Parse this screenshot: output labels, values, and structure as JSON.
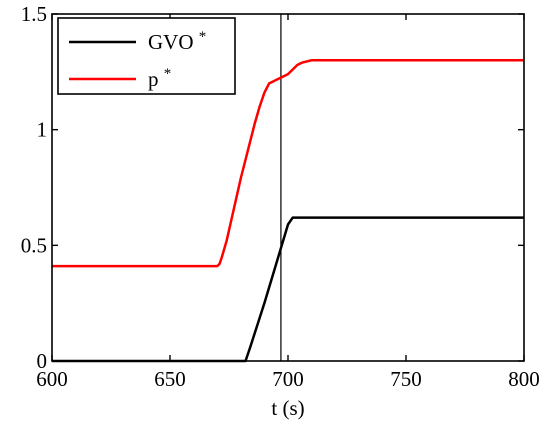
{
  "chart_data": {
    "type": "line",
    "xlabel": "t (s)",
    "ylabel": "",
    "xlim": [
      600,
      800
    ],
    "ylim": [
      0,
      1.5
    ],
    "xticks": [
      600,
      650,
      700,
      750,
      800
    ],
    "xtick_labels": [
      "600",
      "650",
      "700",
      "750",
      "800"
    ],
    "yticks": [
      0,
      0.5,
      1,
      1.5
    ],
    "ytick_labels": [
      "0",
      "0.5",
      "1",
      "1.5"
    ],
    "grid": false,
    "legend_position": "top-left",
    "vline": {
      "x": 697,
      "color": "#000000"
    },
    "series": [
      {
        "name": "GVO",
        "name_sup": "*",
        "color": "#000000",
        "x": [
          600,
          682,
          684,
          690,
          695,
          700,
          702,
          800
        ],
        "y": [
          0,
          0,
          0.06,
          0.25,
          0.42,
          0.59,
          0.62,
          0.62
        ]
      },
      {
        "name": "p",
        "name_sup": "*",
        "color": "#ff0000",
        "x": [
          600,
          670,
          671,
          672,
          674,
          676,
          678,
          680,
          682,
          684,
          686,
          688,
          690,
          692,
          694,
          695,
          696,
          697,
          698,
          700,
          702,
          704,
          706,
          708,
          710,
          715,
          720,
          800
        ],
        "y": [
          0.41,
          0.41,
          0.42,
          0.45,
          0.52,
          0.61,
          0.7,
          0.79,
          0.87,
          0.95,
          1.03,
          1.1,
          1.16,
          1.2,
          1.21,
          1.215,
          1.22,
          1.225,
          1.23,
          1.24,
          1.26,
          1.28,
          1.29,
          1.295,
          1.3,
          1.3,
          1.3,
          1.3
        ]
      }
    ]
  }
}
